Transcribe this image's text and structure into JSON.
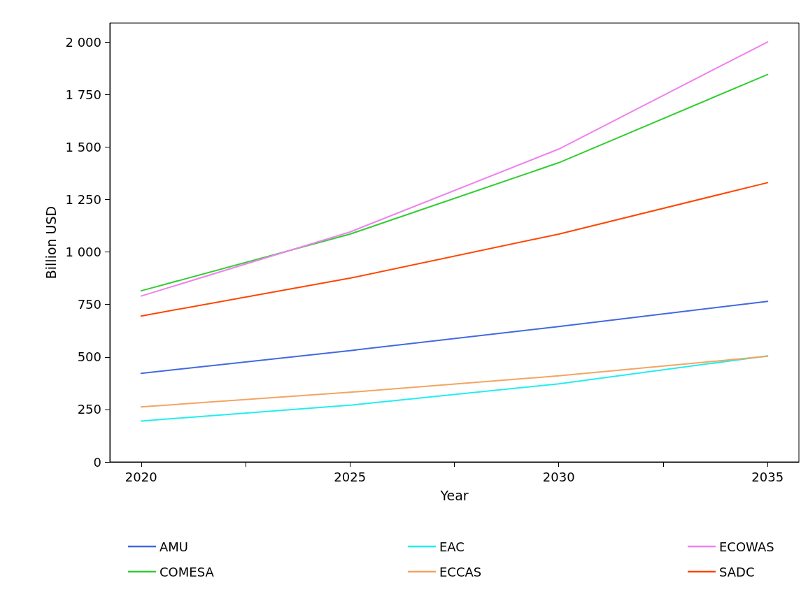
{
  "chart_data": {
    "type": "line",
    "xlabel": "Year",
    "ylabel": "Billion USD",
    "x": [
      2020,
      2025,
      2030,
      2035
    ],
    "xlim": [
      2019.25,
      2035.75
    ],
    "xticks": [
      2020,
      {
        "value": 2022.5,
        "label": null
      },
      2025,
      {
        "value": 2027.5,
        "label": null
      },
      2030,
      {
        "value": 2032.5,
        "label": null
      },
      2035
    ],
    "ylim": [
      0,
      2090
    ],
    "yticks": [
      0,
      250,
      500,
      750,
      {
        "value": 1000,
        "label": "1 000"
      },
      {
        "value": 1250,
        "label": "1 250"
      },
      {
        "value": 1500,
        "label": "1 500"
      },
      {
        "value": 1750,
        "label": "1 750"
      },
      {
        "value": 2000,
        "label": "2 000"
      }
    ],
    "series": [
      {
        "name": "AMU",
        "color": "#4169e1",
        "values": [
          422,
          530,
          645,
          765
        ]
      },
      {
        "name": "COMESA",
        "color": "#32cd32",
        "values": [
          815,
          1085,
          1425,
          1845
        ]
      },
      {
        "name": "EAC",
        "color": "#22eeee",
        "values": [
          195,
          270,
          372,
          505
        ]
      },
      {
        "name": "ECCAS",
        "color": "#f4a460",
        "values": [
          262,
          332,
          410,
          503
        ]
      },
      {
        "name": "ECOWAS",
        "color": "#ee82ee",
        "values": [
          790,
          1095,
          1490,
          2000
        ]
      },
      {
        "name": "SADC",
        "color": "#ff4500",
        "values": [
          695,
          875,
          1085,
          1330
        ]
      }
    ],
    "grid": false,
    "legend": "bottom",
    "marker": "none",
    "line_style": "solid"
  }
}
